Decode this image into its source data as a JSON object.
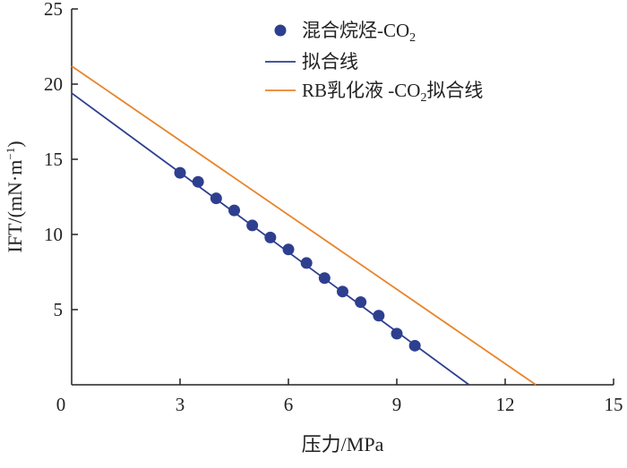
{
  "chart_data": {
    "type": "line",
    "xlabel": "压力/MPa",
    "ylabel_main": "IFT/(mN·m",
    "ylabel_sup": "−1",
    "ylabel_close": ")",
    "xlim": [
      0,
      15
    ],
    "ylim": [
      0,
      25
    ],
    "origin_label": "0",
    "x_ticks": [
      3,
      6,
      9,
      12,
      15
    ],
    "y_ticks": [
      5,
      10,
      15,
      20,
      25
    ],
    "grid": false,
    "legend_position": "top-right",
    "colors": {
      "points": "#2e3f8f",
      "fit": "#2e3f8f",
      "rb_fit": "#e8842b",
      "axis": "#222222"
    },
    "series": [
      {
        "kind": "scatter",
        "legend": {
          "pre": "混合烷烃-CO",
          "sub": "2",
          "post": ""
        },
        "x": [
          3.0,
          3.5,
          4.0,
          4.5,
          5.0,
          5.5,
          6.0,
          6.5,
          7.0,
          7.5,
          8.0,
          8.5,
          9.0,
          9.5
        ],
        "y": [
          14.1,
          13.5,
          12.4,
          11.6,
          10.6,
          9.8,
          9.0,
          8.1,
          7.1,
          6.2,
          5.5,
          4.6,
          3.4,
          2.6
        ]
      },
      {
        "kind": "line",
        "legend": {
          "pre": "拟合线",
          "sub": "",
          "post": ""
        },
        "x": [
          0,
          11.0
        ],
        "y": [
          19.4,
          0
        ]
      },
      {
        "kind": "line",
        "legend": {
          "pre": "RB乳化液 -CO",
          "sub": "2",
          "post": "拟合线"
        },
        "x": [
          0,
          12.85
        ],
        "y": [
          21.2,
          0
        ]
      }
    ]
  }
}
